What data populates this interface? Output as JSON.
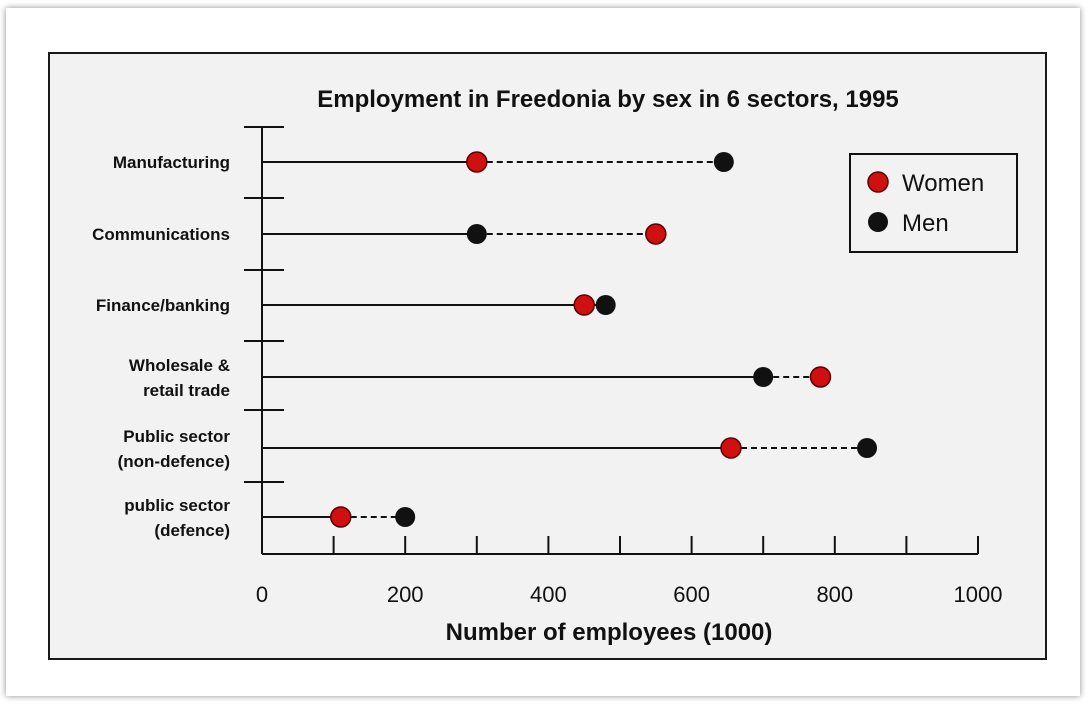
{
  "chart_data": {
    "type": "dot-plot",
    "title": "Employment in Freedonia by sex in 6 sectors, 1995",
    "xlabel": "Number of employees (1000)",
    "ylabel": "",
    "xlim": [
      0,
      1000
    ],
    "x_tick_labels": [
      "0",
      "200",
      "400",
      "600",
      "800",
      "1000"
    ],
    "x_tick_values": [
      0,
      200,
      400,
      600,
      800,
      1000
    ],
    "x_minor_tick_values": [
      100,
      300,
      500,
      700,
      900
    ],
    "categories": [
      [
        "Manufacturing"
      ],
      [
        "Communications"
      ],
      [
        "Finance/banking"
      ],
      [
        "Wholesale &",
        "retail trade"
      ],
      [
        "Public sector",
        "(non-defence)"
      ],
      [
        "public sector",
        "(defence)"
      ]
    ],
    "series": [
      {
        "name": "Women",
        "color": "#d01010",
        "values": [
          300,
          550,
          450,
          780,
          655,
          110
        ]
      },
      {
        "name": "Men",
        "color": "#111111",
        "values": [
          645,
          300,
          480,
          700,
          845,
          200
        ]
      }
    ],
    "legend_position": "top-right",
    "grid": false
  }
}
